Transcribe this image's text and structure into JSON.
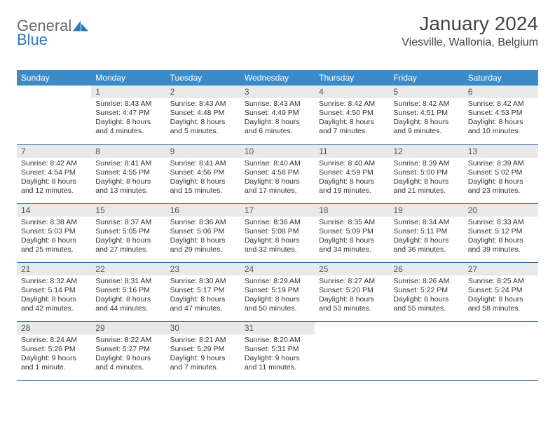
{
  "logo": {
    "part1": "General",
    "part2": "Blue"
  },
  "month_title": "January 2024",
  "location": "Viesville, Wallonia, Belgium",
  "colors": {
    "header_bg": "#3b8bc8",
    "header_text": "#ffffff",
    "daynum_bg": "#e9e9e9",
    "row_border": "#2a6aa0",
    "logo_gray": "#6a6a6a",
    "logo_blue": "#2a7bbf"
  },
  "weekdays": [
    "Sunday",
    "Monday",
    "Tuesday",
    "Wednesday",
    "Thursday",
    "Friday",
    "Saturday"
  ],
  "weeks": [
    [
      {
        "n": "",
        "empty": true
      },
      {
        "n": "1",
        "sr": "Sunrise: 8:43 AM",
        "ss": "Sunset: 4:47 PM",
        "d1": "Daylight: 8 hours",
        "d2": "and 4 minutes."
      },
      {
        "n": "2",
        "sr": "Sunrise: 8:43 AM",
        "ss": "Sunset: 4:48 PM",
        "d1": "Daylight: 8 hours",
        "d2": "and 5 minutes."
      },
      {
        "n": "3",
        "sr": "Sunrise: 8:43 AM",
        "ss": "Sunset: 4:49 PM",
        "d1": "Daylight: 8 hours",
        "d2": "and 6 minutes."
      },
      {
        "n": "4",
        "sr": "Sunrise: 8:42 AM",
        "ss": "Sunset: 4:50 PM",
        "d1": "Daylight: 8 hours",
        "d2": "and 7 minutes."
      },
      {
        "n": "5",
        "sr": "Sunrise: 8:42 AM",
        "ss": "Sunset: 4:51 PM",
        "d1": "Daylight: 8 hours",
        "d2": "and 9 minutes."
      },
      {
        "n": "6",
        "sr": "Sunrise: 8:42 AM",
        "ss": "Sunset: 4:53 PM",
        "d1": "Daylight: 8 hours",
        "d2": "and 10 minutes."
      }
    ],
    [
      {
        "n": "7",
        "sr": "Sunrise: 8:42 AM",
        "ss": "Sunset: 4:54 PM",
        "d1": "Daylight: 8 hours",
        "d2": "and 12 minutes."
      },
      {
        "n": "8",
        "sr": "Sunrise: 8:41 AM",
        "ss": "Sunset: 4:55 PM",
        "d1": "Daylight: 8 hours",
        "d2": "and 13 minutes."
      },
      {
        "n": "9",
        "sr": "Sunrise: 8:41 AM",
        "ss": "Sunset: 4:56 PM",
        "d1": "Daylight: 8 hours",
        "d2": "and 15 minutes."
      },
      {
        "n": "10",
        "sr": "Sunrise: 8:40 AM",
        "ss": "Sunset: 4:58 PM",
        "d1": "Daylight: 8 hours",
        "d2": "and 17 minutes."
      },
      {
        "n": "11",
        "sr": "Sunrise: 8:40 AM",
        "ss": "Sunset: 4:59 PM",
        "d1": "Daylight: 8 hours",
        "d2": "and 19 minutes."
      },
      {
        "n": "12",
        "sr": "Sunrise: 8:39 AM",
        "ss": "Sunset: 5:00 PM",
        "d1": "Daylight: 8 hours",
        "d2": "and 21 minutes."
      },
      {
        "n": "13",
        "sr": "Sunrise: 8:39 AM",
        "ss": "Sunset: 5:02 PM",
        "d1": "Daylight: 8 hours",
        "d2": "and 23 minutes."
      }
    ],
    [
      {
        "n": "14",
        "sr": "Sunrise: 8:38 AM",
        "ss": "Sunset: 5:03 PM",
        "d1": "Daylight: 8 hours",
        "d2": "and 25 minutes."
      },
      {
        "n": "15",
        "sr": "Sunrise: 8:37 AM",
        "ss": "Sunset: 5:05 PM",
        "d1": "Daylight: 8 hours",
        "d2": "and 27 minutes."
      },
      {
        "n": "16",
        "sr": "Sunrise: 8:36 AM",
        "ss": "Sunset: 5:06 PM",
        "d1": "Daylight: 8 hours",
        "d2": "and 29 minutes."
      },
      {
        "n": "17",
        "sr": "Sunrise: 8:36 AM",
        "ss": "Sunset: 5:08 PM",
        "d1": "Daylight: 8 hours",
        "d2": "and 32 minutes."
      },
      {
        "n": "18",
        "sr": "Sunrise: 8:35 AM",
        "ss": "Sunset: 5:09 PM",
        "d1": "Daylight: 8 hours",
        "d2": "and 34 minutes."
      },
      {
        "n": "19",
        "sr": "Sunrise: 8:34 AM",
        "ss": "Sunset: 5:11 PM",
        "d1": "Daylight: 8 hours",
        "d2": "and 36 minutes."
      },
      {
        "n": "20",
        "sr": "Sunrise: 8:33 AM",
        "ss": "Sunset: 5:12 PM",
        "d1": "Daylight: 8 hours",
        "d2": "and 39 minutes."
      }
    ],
    [
      {
        "n": "21",
        "sr": "Sunrise: 8:32 AM",
        "ss": "Sunset: 5:14 PM",
        "d1": "Daylight: 8 hours",
        "d2": "and 42 minutes."
      },
      {
        "n": "22",
        "sr": "Sunrise: 8:31 AM",
        "ss": "Sunset: 5:16 PM",
        "d1": "Daylight: 8 hours",
        "d2": "and 44 minutes."
      },
      {
        "n": "23",
        "sr": "Sunrise: 8:30 AM",
        "ss": "Sunset: 5:17 PM",
        "d1": "Daylight: 8 hours",
        "d2": "and 47 minutes."
      },
      {
        "n": "24",
        "sr": "Sunrise: 8:29 AM",
        "ss": "Sunset: 5:19 PM",
        "d1": "Daylight: 8 hours",
        "d2": "and 50 minutes."
      },
      {
        "n": "25",
        "sr": "Sunrise: 8:27 AM",
        "ss": "Sunset: 5:20 PM",
        "d1": "Daylight: 8 hours",
        "d2": "and 53 minutes."
      },
      {
        "n": "26",
        "sr": "Sunrise: 8:26 AM",
        "ss": "Sunset: 5:22 PM",
        "d1": "Daylight: 8 hours",
        "d2": "and 55 minutes."
      },
      {
        "n": "27",
        "sr": "Sunrise: 8:25 AM",
        "ss": "Sunset: 5:24 PM",
        "d1": "Daylight: 8 hours",
        "d2": "and 58 minutes."
      }
    ],
    [
      {
        "n": "28",
        "sr": "Sunrise: 8:24 AM",
        "ss": "Sunset: 5:26 PM",
        "d1": "Daylight: 9 hours",
        "d2": "and 1 minute."
      },
      {
        "n": "29",
        "sr": "Sunrise: 8:22 AM",
        "ss": "Sunset: 5:27 PM",
        "d1": "Daylight: 9 hours",
        "d2": "and 4 minutes."
      },
      {
        "n": "30",
        "sr": "Sunrise: 8:21 AM",
        "ss": "Sunset: 5:29 PM",
        "d1": "Daylight: 9 hours",
        "d2": "and 7 minutes."
      },
      {
        "n": "31",
        "sr": "Sunrise: 8:20 AM",
        "ss": "Sunset: 5:31 PM",
        "d1": "Daylight: 9 hours",
        "d2": "and 11 minutes."
      },
      {
        "n": "",
        "empty": true
      },
      {
        "n": "",
        "empty": true
      },
      {
        "n": "",
        "empty": true
      }
    ]
  ]
}
